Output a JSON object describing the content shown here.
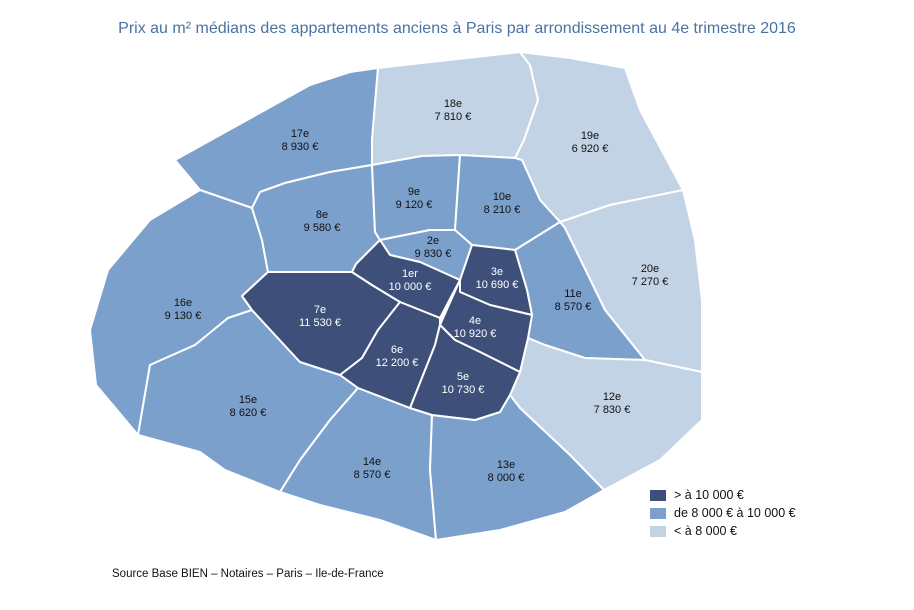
{
  "title": "Prix au m² médians des appartements anciens à Paris par arrondissement au 4e trimestre 2016",
  "colors": {
    "high": "#3e5079",
    "mid": "#7ca0cc",
    "low": "#c2d3e6",
    "label_dark": "#ffffff",
    "label_light": "#111111"
  },
  "arrondissements": [
    {
      "id": "1",
      "name": "1er",
      "price": "10 000 €",
      "class": "high"
    },
    {
      "id": "2",
      "name": "2e",
      "price": "9 830 €",
      "class": "mid"
    },
    {
      "id": "3",
      "name": "3e",
      "price": "10 690 €",
      "class": "high"
    },
    {
      "id": "4",
      "name": "4e",
      "price": "10 920 €",
      "class": "high"
    },
    {
      "id": "5",
      "name": "5e",
      "price": "10 730 €",
      "class": "high"
    },
    {
      "id": "6",
      "name": "6e",
      "price": "12 200 €",
      "class": "high"
    },
    {
      "id": "7",
      "name": "7e",
      "price": "11 530 €",
      "class": "high"
    },
    {
      "id": "8",
      "name": "8e",
      "price": "9 580 €",
      "class": "mid"
    },
    {
      "id": "9",
      "name": "9e",
      "price": "9 120 €",
      "class": "mid"
    },
    {
      "id": "10",
      "name": "10e",
      "price": "8 210 €",
      "class": "mid"
    },
    {
      "id": "11",
      "name": "11e",
      "price": "8 570 €",
      "class": "mid"
    },
    {
      "id": "12",
      "name": "12e",
      "price": "7 830 €",
      "class": "low"
    },
    {
      "id": "13",
      "name": "13e",
      "price": "8 000 €",
      "class": "mid"
    },
    {
      "id": "14",
      "name": "14e",
      "price": "8 570 €",
      "class": "mid"
    },
    {
      "id": "15",
      "name": "15e",
      "price": "8 620 €",
      "class": "mid"
    },
    {
      "id": "16",
      "name": "16e",
      "price": "9 130 €",
      "class": "mid"
    },
    {
      "id": "17",
      "name": "17e",
      "price": "8 930 €",
      "class": "mid"
    },
    {
      "id": "18",
      "name": "18e",
      "price": "7 810 €",
      "class": "low"
    },
    {
      "id": "19",
      "name": "19e",
      "price": "6 920 €",
      "class": "low"
    },
    {
      "id": "20",
      "name": "20e",
      "price": "7 270 €",
      "class": "low"
    }
  ],
  "legend": [
    {
      "label": "> à 10 000 €",
      "class": "high"
    },
    {
      "label": "de 8 000 € à 10 000 €",
      "class": "mid"
    },
    {
      "label": "< à 8 000 €",
      "class": "low"
    }
  ],
  "source": "Source Base BIEN – Notaires – Paris – Ile-de-France"
}
